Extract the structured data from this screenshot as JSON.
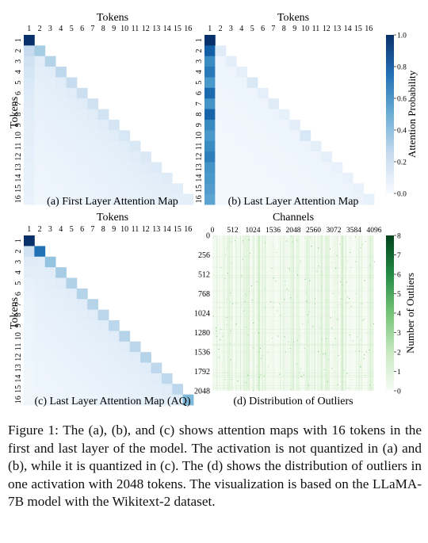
{
  "figure": {
    "panels": [
      {
        "id": "a",
        "caption": "(a) First Layer Attention Map",
        "xlabel": "Tokens",
        "ylabel": "Tokens",
        "ticks": [
          "1",
          "2",
          "3",
          "4",
          "5",
          "6",
          "7",
          "8",
          "9",
          "10",
          "11",
          "12",
          "13",
          "14",
          "15",
          "16"
        ]
      },
      {
        "id": "b",
        "caption": "(b) Last Layer Attention Map",
        "xlabel": "Tokens",
        "ylabel": "",
        "ticks": [
          "1",
          "2",
          "3",
          "4",
          "5",
          "6",
          "7",
          "8",
          "9",
          "10",
          "11",
          "12",
          "13",
          "14",
          "15",
          "16"
        ]
      },
      {
        "id": "c",
        "caption": "(c) Last Layer Attention Map (AQ)",
        "xlabel": "Tokens",
        "ylabel": "Tokens",
        "ticks": [
          "1",
          "2",
          "3",
          "4",
          "5",
          "6",
          "7",
          "8",
          "9",
          "10",
          "11",
          "12",
          "13",
          "14",
          "15",
          "16"
        ]
      },
      {
        "id": "d",
        "caption": "(d) Distribution of Outliers",
        "xlabel": "Channels",
        "ylabel": "",
        "xticks": [
          "0",
          "512",
          "1024",
          "1536",
          "2048",
          "2560",
          "3072",
          "3584",
          "4096"
        ],
        "yticks": [
          "0",
          "256",
          "512",
          "768",
          "1024",
          "1280",
          "1536",
          "1792",
          "2048"
        ]
      }
    ],
    "colorbars": [
      {
        "label": "Attention Probability",
        "ticks": [
          "0.0",
          "0.2",
          "0.4",
          "0.6",
          "0.8",
          "1.0"
        ],
        "min_color": "#f7fbff",
        "max_color": "#08306b"
      },
      {
        "label": "Number of Outliers",
        "ticks": [
          "0",
          "1",
          "2",
          "3",
          "4",
          "5",
          "6",
          "7",
          "8"
        ],
        "min_color": "#f7fcf5",
        "max_color": "#00441b"
      }
    ],
    "caption": "Figure 1: The (a), (b), and (c) shows attention maps with 16 tokens in the first and last layer of the model. The activation is not quantized in (a) and (b), while it is quantized in (c). The (d) shows the distribution of outliers in one activation with 2048 tokens. The visualization is based on the LLaMA-7B model with the Wikitext-2 dataset."
  },
  "chart_data": [
    {
      "type": "heatmap",
      "title": "(a) First Layer Attention Map",
      "xlabel": "Tokens",
      "ylabel": "Tokens",
      "x": [
        1,
        2,
        3,
        4,
        5,
        6,
        7,
        8,
        9,
        10,
        11,
        12,
        13,
        14,
        15,
        16
      ],
      "y": [
        1,
        2,
        3,
        4,
        5,
        6,
        7,
        8,
        9,
        10,
        11,
        12,
        13,
        14,
        15,
        16
      ],
      "mask": "lower-triangular (causal)",
      "pattern": "diagonal-dominant, first column moderately high",
      "diagonal_values": [
        1.0,
        0.35,
        0.3,
        0.27,
        0.24,
        0.22,
        0.2,
        0.19,
        0.17,
        0.16,
        0.15,
        0.14,
        0.13,
        0.12,
        0.11,
        0.1
      ],
      "first_column_values": [
        1.0,
        0.25,
        0.2,
        0.17,
        0.15,
        0.13,
        0.12,
        0.11,
        0.1,
        0.1,
        0.09,
        0.09,
        0.08,
        0.08,
        0.08,
        0.07
      ],
      "clim": [
        0.0,
        1.0
      ]
    },
    {
      "type": "heatmap",
      "title": "(b) Last Layer Attention Map",
      "xlabel": "Tokens",
      "ylabel": "",
      "x": [
        1,
        2,
        3,
        4,
        5,
        6,
        7,
        8,
        9,
        10,
        11,
        12,
        13,
        14,
        15,
        16
      ],
      "y": [
        1,
        2,
        3,
        4,
        5,
        6,
        7,
        8,
        9,
        10,
        11,
        12,
        13,
        14,
        15,
        16
      ],
      "mask": "lower-triangular (causal)",
      "pattern": "attention sink on first token, faint diagonal",
      "diagonal_values": [
        1.0,
        0.12,
        0.1,
        0.09,
        0.15,
        0.09,
        0.12,
        0.08,
        0.1,
        0.16,
        0.1,
        0.09,
        0.07,
        0.07,
        0.07,
        0.08
      ],
      "first_column_values": [
        1.0,
        0.82,
        0.65,
        0.72,
        0.6,
        0.78,
        0.62,
        0.8,
        0.66,
        0.6,
        0.65,
        0.7,
        0.62,
        0.6,
        0.58,
        0.55
      ],
      "clim": [
        0.0,
        1.0
      ]
    },
    {
      "type": "heatmap",
      "title": "(c) Last Layer Attention Map (AQ)",
      "xlabel": "Tokens",
      "ylabel": "Tokens",
      "x": [
        1,
        2,
        3,
        4,
        5,
        6,
        7,
        8,
        9,
        10,
        11,
        12,
        13,
        14,
        15,
        16
      ],
      "y": [
        1,
        2,
        3,
        4,
        5,
        6,
        7,
        8,
        9,
        10,
        11,
        12,
        13,
        14,
        15,
        16
      ],
      "mask": "lower-triangular (causal)",
      "pattern": "diagonal-dominant, first token not dominant after quantization",
      "diagonal_values": [
        1.0,
        0.75,
        0.4,
        0.35,
        0.32,
        0.3,
        0.3,
        0.28,
        0.28,
        0.3,
        0.28,
        0.3,
        0.27,
        0.27,
        0.28,
        0.45
      ],
      "first_column_values": [
        1.0,
        0.2,
        0.12,
        0.1,
        0.08,
        0.07,
        0.06,
        0.06,
        0.05,
        0.05,
        0.05,
        0.05,
        0.04,
        0.04,
        0.04,
        0.04
      ],
      "clim": [
        0.0,
        1.0
      ]
    },
    {
      "type": "heatmap",
      "title": "(d) Distribution of Outliers",
      "xlabel": "Channels",
      "ylabel": "",
      "xlim": [
        0,
        4096
      ],
      "ylim": [
        0,
        2048
      ],
      "clim": [
        0,
        8
      ],
      "pattern": "sparse light-green outliers spread across channels and tokens, denser columns scattered"
    }
  ]
}
